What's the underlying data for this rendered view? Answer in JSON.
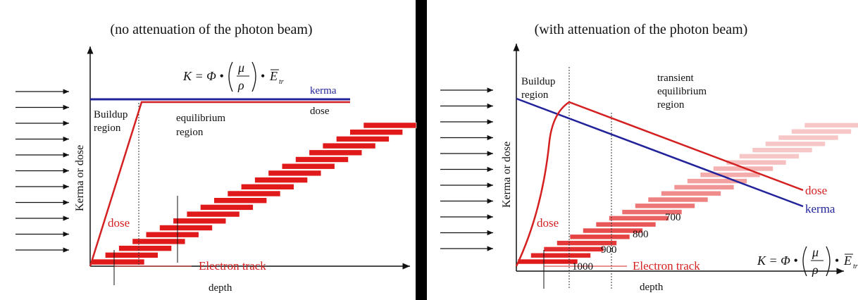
{
  "left": {
    "title": "(no attenuation of the photon beam)",
    "y_axis": "Kerma or dose",
    "x_axis": "depth",
    "kerma": "kerma",
    "dose": "dose",
    "buildup": [
      "Buildup",
      "region"
    ],
    "equilibrium": [
      "equilibrium",
      "region"
    ],
    "dose_marker": "dose",
    "electron_track": "Electron track",
    "formula": {
      "lhs": "K = Φ •",
      "numerator": "μ",
      "denominator": "ρ",
      "dot": "•",
      "energy": "E",
      "subscript": "tr"
    }
  },
  "right": {
    "title": "(with attenuation of the photon beam)",
    "y_axis": "Kerma or dose",
    "x_axis": "depth",
    "kerma": "kerma",
    "dose": "dose",
    "buildup": [
      "Buildup",
      "region"
    ],
    "equilibrium": [
      "transient",
      "equilibrium",
      "region"
    ],
    "dose_marker": "dose",
    "electron_track": "Electron track",
    "track_labels": [
      700,
      800,
      900,
      1000
    ],
    "formula": {
      "lhs": "K = Φ •",
      "numerator": "μ",
      "denominator": "ρ",
      "dot": "•",
      "energy": "E",
      "subscript": "tr"
    }
  }
}
